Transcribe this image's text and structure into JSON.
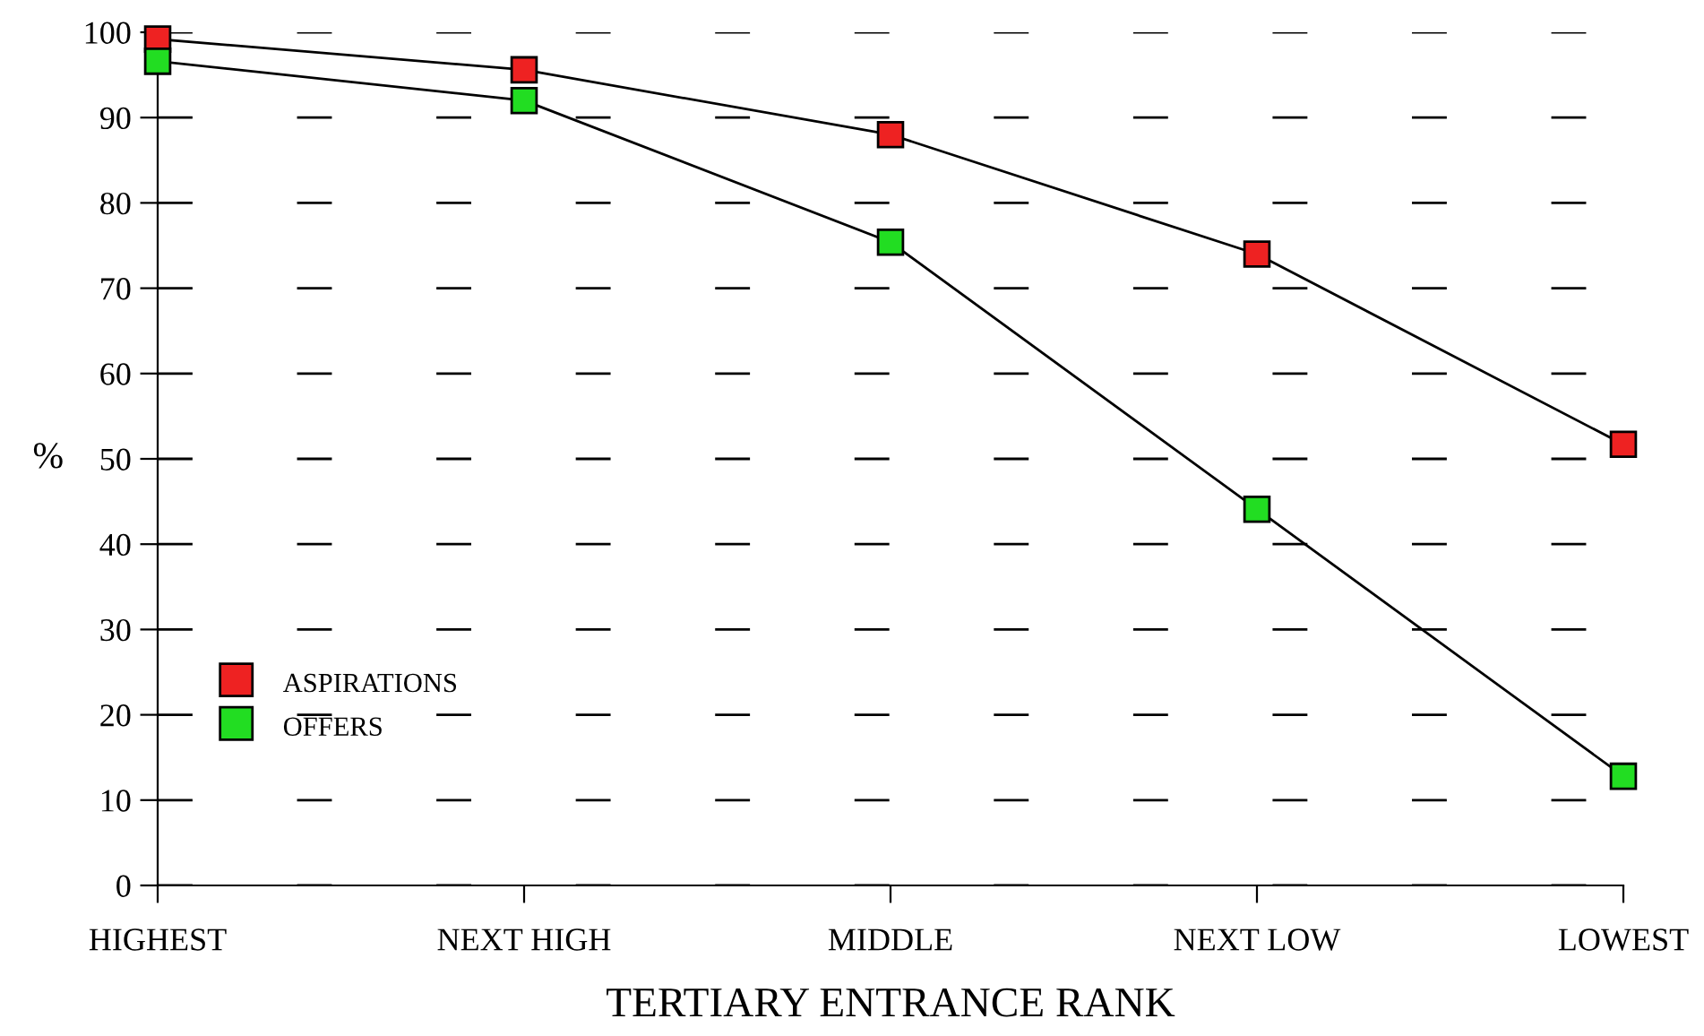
{
  "chart_data": {
    "type": "line",
    "xlabel": "TERTIARY ENTRANCE RANK",
    "ylabel": "%",
    "categories": [
      "HIGHEST",
      "NEXT HIGH",
      "MIDDLE",
      "NEXT LOW",
      "LOWEST"
    ],
    "series": [
      {
        "name": "ASPIRATIONS",
        "color": "#ee2222",
        "values": [
          99.2,
          95.6,
          88.0,
          74.0,
          51.7
        ]
      },
      {
        "name": "OFFERS",
        "color": "#22dd22",
        "values": [
          96.6,
          92.0,
          75.4,
          44.1,
          12.8
        ]
      }
    ],
    "ylim": [
      0,
      100
    ],
    "yticks": [
      0,
      10,
      20,
      30,
      40,
      50,
      60,
      70,
      80,
      90,
      100
    ],
    "grid": "y",
    "legend": "bottom left",
    "marker": "square",
    "line_style": "solid"
  }
}
